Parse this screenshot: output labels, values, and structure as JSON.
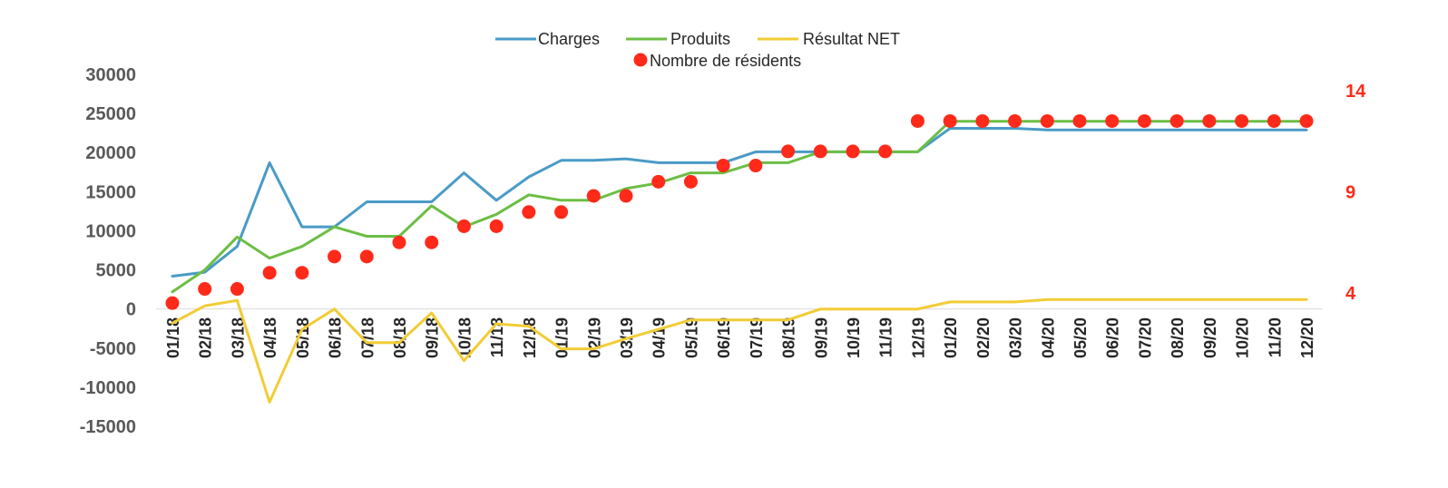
{
  "chart_data": {
    "type": "line",
    "categories": [
      "01/18",
      "02/18",
      "03/18",
      "04/18",
      "05/18",
      "06/18",
      "07/18",
      "08/18",
      "09/18",
      "10/18",
      "11/18",
      "12/18",
      "01/19",
      "02/19",
      "03/19",
      "04/19",
      "05/19",
      "06/19",
      "07/19",
      "08/19",
      "09/19",
      "10/19",
      "11/19",
      "12/19",
      "01/20",
      "02/20",
      "03/20",
      "04/20",
      "05/20",
      "06/20",
      "07/20",
      "08/20",
      "09/20",
      "10/20",
      "11/20",
      "12/20"
    ],
    "series": [
      {
        "name": "Charges",
        "axis": "left",
        "kind": "line",
        "color": "#4A9BC7",
        "values": [
          4200,
          4700,
          8000,
          18700,
          10500,
          10500,
          13700,
          13700,
          13700,
          17400,
          13900,
          16900,
          19000,
          19000,
          19200,
          18700,
          18700,
          18700,
          20100,
          20100,
          20100,
          20100,
          20100,
          20100,
          23100,
          23100,
          23100,
          22900,
          22900,
          22900,
          22900,
          22900,
          22900,
          22900,
          22900,
          22900
        ]
      },
      {
        "name": "Produits",
        "axis": "left",
        "kind": "line",
        "color": "#6CBE45",
        "values": [
          2200,
          5000,
          9200,
          6500,
          8000,
          10500,
          9300,
          9300,
          13200,
          10500,
          12100,
          14600,
          13900,
          13900,
          15400,
          16100,
          17400,
          17400,
          18700,
          18700,
          20100,
          20100,
          20100,
          20100,
          24000,
          24000,
          24000,
          24000,
          24000,
          24000,
          24000,
          24000,
          24000,
          24000,
          24000,
          24000
        ]
      },
      {
        "name": "Résultat NET",
        "axis": "left",
        "kind": "line",
        "color": "#F2CC35",
        "values": [
          -1800,
          400,
          1100,
          -11900,
          -2600,
          0,
          -4300,
          -4300,
          -500,
          -6600,
          -1900,
          -2200,
          -5100,
          -5100,
          -3800,
          -2600,
          -1400,
          -1400,
          -1400,
          -1400,
          0,
          0,
          0,
          0,
          900,
          900,
          900,
          1200,
          1200,
          1200,
          1200,
          1200,
          1200,
          1200,
          1200,
          1200
        ]
      },
      {
        "name": "Nombre de résidents",
        "axis": "right",
        "kind": "scatter",
        "color": "#FF2A1A",
        "values": [
          3.5,
          4.2,
          4.2,
          5.0,
          5.0,
          5.8,
          5.8,
          6.5,
          6.5,
          7.3,
          7.3,
          8.0,
          8.0,
          8.8,
          8.8,
          9.5,
          9.5,
          10.3,
          10.3,
          11.0,
          11.0,
          11.0,
          11.0,
          12.5,
          12.5,
          12.5,
          12.5,
          12.5,
          12.5,
          12.5,
          12.5,
          12.5,
          12.5,
          12.5,
          12.5,
          12.5
        ]
      }
    ],
    "y_left": {
      "ticks": [
        30000,
        25000,
        20000,
        15000,
        10000,
        5000,
        0,
        -5000,
        -10000,
        -15000
      ],
      "range": [
        -15000,
        30000
      ],
      "tick_color": "#595959"
    },
    "y_right": {
      "ticks": [
        14,
        9,
        4
      ],
      "range": [
        4,
        14
      ],
      "tick_color": "#FF2A1A"
    },
    "title": "",
    "xlabel": "",
    "ylabel": "",
    "grid": false,
    "legend_position": "top-center"
  }
}
